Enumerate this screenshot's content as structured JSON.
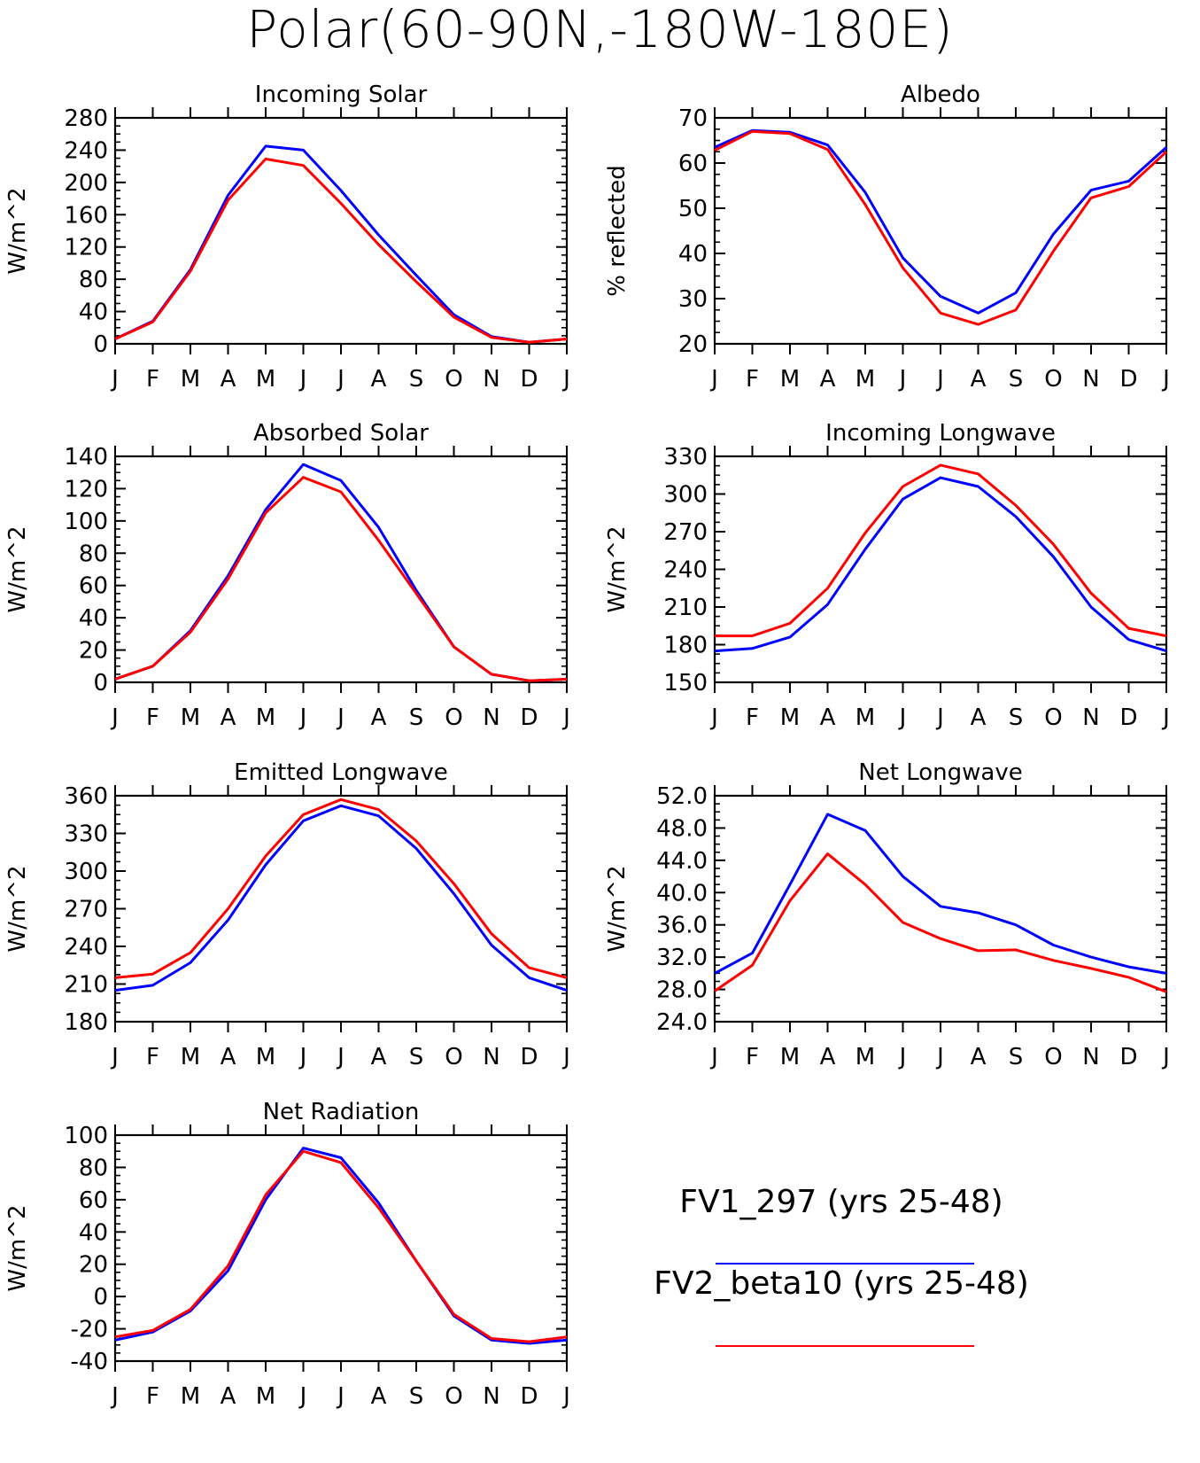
{
  "title": "Polar(60-90N,-180W-180E)",
  "colors": {
    "series1": "#0000ff",
    "series2": "#ff0000"
  },
  "legend": [
    {
      "label": "FV1_297 (yrs 25-48)",
      "color": "#0000ff"
    },
    {
      "label": "FV2_beta10 (yrs 25-48)",
      "color": "#ff0000"
    }
  ],
  "chart_data": [
    {
      "type": "line",
      "title": "Incoming Solar",
      "ylabel": "W/m^2",
      "categories": [
        "J",
        "F",
        "M",
        "A",
        "M",
        "J",
        "J",
        "A",
        "S",
        "O",
        "N",
        "D",
        "J"
      ],
      "ylim": [
        0,
        280
      ],
      "yticks": [
        "0",
        "40",
        "80",
        "120",
        "160",
        "200",
        "240",
        "280"
      ],
      "series": [
        {
          "name": "FV1_297 (yrs 25-48)",
          "values": [
            6,
            28,
            92,
            184,
            245,
            240,
            190,
            135,
            85,
            36,
            9,
            2,
            6
          ]
        },
        {
          "name": "FV2_beta10 (yrs 25-48)",
          "values": [
            6,
            27,
            90,
            178,
            229,
            221,
            174,
            123,
            77,
            33,
            8,
            2,
            6
          ]
        }
      ]
    },
    {
      "type": "line",
      "title": "Albedo",
      "ylabel": "% reflected",
      "categories": [
        "J",
        "F",
        "M",
        "A",
        "M",
        "J",
        "J",
        "A",
        "S",
        "O",
        "N",
        "D",
        "J"
      ],
      "ylim": [
        20,
        70
      ],
      "yticks": [
        "20",
        "30",
        "40",
        "50",
        "60",
        "70"
      ],
      "series": [
        {
          "name": "FV1_297 (yrs 25-48)",
          "values": [
            63.5,
            67.2,
            66.8,
            64.0,
            53.5,
            39.0,
            30.5,
            26.8,
            31.3,
            44.3,
            54.0,
            56.0,
            63.5
          ]
        },
        {
          "name": "FV2_beta10 (yrs 25-48)",
          "values": [
            62.8,
            67.0,
            66.5,
            63.0,
            50.8,
            36.8,
            26.8,
            24.3,
            27.5,
            40.5,
            52.3,
            54.8,
            62.5
          ]
        }
      ]
    },
    {
      "type": "line",
      "title": "Absorbed Solar",
      "ylabel": "W/m^2",
      "categories": [
        "J",
        "F",
        "M",
        "A",
        "M",
        "J",
        "J",
        "A",
        "S",
        "O",
        "N",
        "D",
        "J"
      ],
      "ylim": [
        0,
        140
      ],
      "yticks": [
        "0",
        "20",
        "40",
        "60",
        "80",
        "100",
        "120",
        "140"
      ],
      "series": [
        {
          "name": "FV1_297 (yrs 25-48)",
          "values": [
            2,
            10,
            32,
            66,
            107,
            135,
            125,
            96,
            57,
            22,
            5,
            1,
            2
          ]
        },
        {
          "name": "FV2_beta10 (yrs 25-48)",
          "values": [
            2,
            10,
            31,
            64,
            105,
            127,
            118,
            88,
            55,
            22,
            5,
            1,
            2
          ]
        }
      ]
    },
    {
      "type": "line",
      "title": "Incoming Longwave",
      "ylabel": "W/m^2",
      "categories": [
        "J",
        "F",
        "M",
        "A",
        "M",
        "J",
        "J",
        "A",
        "S",
        "O",
        "N",
        "D",
        "J"
      ],
      "ylim": [
        150,
        330
      ],
      "yticks": [
        "150",
        "180",
        "210",
        "240",
        "270",
        "300",
        "330"
      ],
      "series": [
        {
          "name": "FV1_297 (yrs 25-48)",
          "values": [
            175,
            177,
            186,
            212,
            256,
            296,
            313,
            306,
            282,
            250,
            210,
            184,
            175
          ]
        },
        {
          "name": "FV2_beta10 (yrs 25-48)",
          "values": [
            187,
            187,
            197,
            225,
            269,
            306,
            323,
            316,
            291,
            260,
            221,
            193,
            187
          ]
        }
      ]
    },
    {
      "type": "line",
      "title": "Emitted Longwave",
      "ylabel": "W/m^2",
      "categories": [
        "J",
        "F",
        "M",
        "A",
        "M",
        "J",
        "J",
        "A",
        "S",
        "O",
        "N",
        "D",
        "J"
      ],
      "ylim": [
        180,
        360
      ],
      "yticks": [
        "180",
        "210",
        "240",
        "270",
        "300",
        "330",
        "360"
      ],
      "series": [
        {
          "name": "FV1_297 (yrs 25-48)",
          "values": [
            205,
            209,
            227,
            261,
            305,
            340,
            352,
            344,
            318,
            282,
            241,
            215,
            205
          ]
        },
        {
          "name": "FV2_beta10 (yrs 25-48)",
          "values": [
            215,
            218,
            235,
            270,
            312,
            345,
            357,
            349,
            324,
            290,
            250,
            223,
            215
          ]
        }
      ]
    },
    {
      "type": "line",
      "title": "Net Longwave",
      "ylabel": "W/m^2",
      "categories": [
        "J",
        "F",
        "M",
        "A",
        "M",
        "J",
        "J",
        "A",
        "S",
        "O",
        "N",
        "D",
        "J"
      ],
      "ylim": [
        24,
        52
      ],
      "yticks": [
        "24.0",
        "28.0",
        "32.0",
        "36.0",
        "40.0",
        "44.0",
        "48.0",
        "52.0"
      ],
      "series": [
        {
          "name": "FV1_297 (yrs 25-48)",
          "values": [
            30.0,
            32.5,
            41.0,
            49.7,
            47.7,
            42.0,
            38.3,
            37.5,
            36.0,
            33.5,
            32.0,
            30.8,
            30.0
          ]
        },
        {
          "name": "FV2_beta10 (yrs 25-48)",
          "values": [
            27.8,
            31.0,
            39.0,
            44.8,
            41.0,
            36.3,
            34.3,
            32.8,
            32.9,
            31.6,
            30.6,
            29.5,
            27.7
          ]
        }
      ]
    },
    {
      "type": "line",
      "title": "Net Radiation",
      "ylabel": "W/m^2",
      "categories": [
        "J",
        "F",
        "M",
        "A",
        "M",
        "J",
        "J",
        "A",
        "S",
        "O",
        "N",
        "D",
        "J"
      ],
      "ylim": [
        -40,
        100
      ],
      "yticks": [
        "-40",
        "-20",
        "0",
        "20",
        "40",
        "60",
        "80",
        "100"
      ],
      "series": [
        {
          "name": "FV1_297 (yrs 25-48)",
          "values": [
            -27,
            -22,
            -9,
            16,
            60,
            92,
            86,
            58,
            22,
            -12,
            -27,
            -29,
            -27
          ]
        },
        {
          "name": "FV2_beta10 (yrs 25-48)",
          "values": [
            -25,
            -21,
            -8,
            19,
            63,
            90,
            83,
            55,
            22,
            -11,
            -26,
            -28,
            -25
          ]
        }
      ]
    }
  ]
}
